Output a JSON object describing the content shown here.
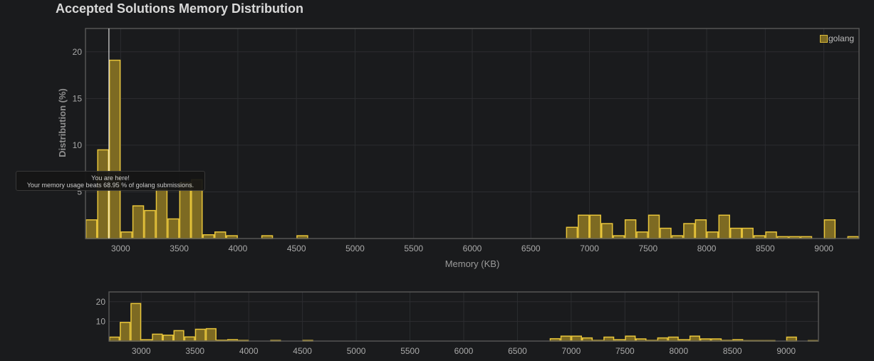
{
  "title": "Accepted Solutions Memory Distribution",
  "tooltip": {
    "line1": "You are here!",
    "line2": "Your memory usage beats 68.95 % of golang submissions."
  },
  "colors": {
    "bar_fill": "#7d6a22",
    "bar_stroke": "#e8c53a",
    "grid": "#2c2d30",
    "frame": "#555555",
    "marker": "#ffffff"
  },
  "chart_data": [
    {
      "type": "bar",
      "xlabel": "Memory (KB)",
      "ylabel": "Distribution (%)",
      "xlim": [
        2700,
        9300
      ],
      "ylim": [
        0,
        22.5
      ],
      "x_ticks": [
        3000,
        3500,
        4000,
        4500,
        5000,
        5500,
        6000,
        6500,
        7000,
        7500,
        8000,
        8500,
        9000
      ],
      "y_ticks": [
        5,
        10,
        15,
        20
      ],
      "bin_width": 100,
      "marker_x": 2900,
      "legend": {
        "entries": [
          "golang"
        ],
        "position": "top-right"
      },
      "series": [
        {
          "name": "golang",
          "x": [
            2700,
            2800,
            2900,
            3000,
            3100,
            3200,
            3300,
            3400,
            3500,
            3600,
            3700,
            3800,
            3900,
            4200,
            4500,
            6800,
            6900,
            7000,
            7100,
            7200,
            7300,
            7400,
            7500,
            7600,
            7700,
            7800,
            7900,
            8000,
            8100,
            8200,
            8300,
            8400,
            8500,
            8600,
            8700,
            8800,
            9000,
            9200,
            9300
          ],
          "values": [
            2.0,
            9.5,
            19.1,
            0.7,
            3.5,
            3.0,
            5.3,
            2.1,
            6.0,
            6.3,
            0.4,
            0.7,
            0.3,
            0.3,
            0.3,
            1.2,
            2.5,
            2.5,
            1.6,
            0.3,
            2.0,
            0.7,
            2.5,
            1.1,
            0.3,
            1.6,
            2.0,
            0.7,
            2.5,
            1.1,
            1.1,
            0.3,
            0.7,
            0.2,
            0.2,
            0.2,
            2.0,
            0.2,
            0.2
          ]
        }
      ]
    },
    {
      "type": "bar",
      "xlim": [
        2700,
        9300
      ],
      "ylim": [
        0,
        25
      ],
      "x_ticks": [
        3000,
        3500,
        4000,
        4500,
        5000,
        5500,
        6000,
        6500,
        7000,
        7500,
        8000,
        8500,
        9000
      ],
      "y_ticks": [
        10,
        20
      ],
      "bin_width": 100
    }
  ]
}
